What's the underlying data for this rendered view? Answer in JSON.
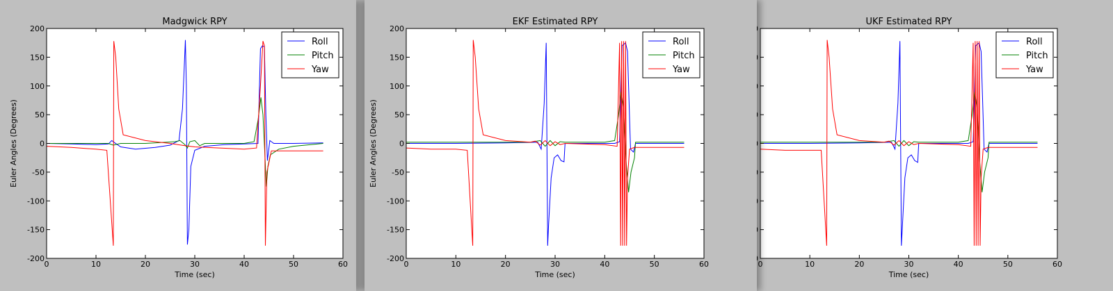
{
  "chart_data": [
    {
      "type": "line",
      "title": "Madgwick RPY",
      "xlabel": "Time (sec)",
      "ylabel": "Euler Angles (Degrees)",
      "xlim": [
        0,
        60
      ],
      "ylim": [
        -200,
        200
      ],
      "xticks": [
        0,
        10,
        20,
        30,
        40,
        50,
        60
      ],
      "yticks": [
        -200,
        -150,
        -100,
        -50,
        0,
        50,
        100,
        150,
        200
      ],
      "grid": false,
      "legend_position": "top-right",
      "series": [
        {
          "name": "Roll",
          "color": "#0000ff",
          "x": [
            0,
            5,
            10,
            12.5,
            13.2,
            13.8,
            15,
            18,
            22,
            25,
            26.8,
            27.5,
            28.1,
            28.3,
            28.5,
            28.8,
            29.2,
            30,
            32,
            36,
            40,
            42.8,
            43.3,
            43.7,
            44.1,
            44.4,
            44.7,
            45.2,
            46,
            50,
            56
          ],
          "y": [
            0,
            -1,
            -2,
            -1,
            5,
            1,
            -6,
            -10,
            -7,
            -3,
            5,
            60,
            180,
            100,
            -176,
            -150,
            -40,
            -12,
            -5,
            -2,
            -1,
            0,
            165,
            170,
            168,
            50,
            -30,
            5,
            0,
            0,
            1
          ]
        },
        {
          "name": "Pitch",
          "color": "#008000",
          "x": [
            0,
            10,
            12.5,
            13.5,
            15,
            20,
            26,
            27,
            28,
            28.5,
            29,
            30,
            31,
            32,
            40,
            42,
            42.8,
            43.4,
            43.8,
            44.2,
            44.5,
            44.8,
            45.3,
            47,
            50,
            56
          ],
          "y": [
            0,
            0,
            0,
            -3,
            0,
            0,
            3,
            5,
            -2,
            -8,
            3,
            5,
            -4,
            0,
            0,
            3,
            40,
            80,
            50,
            -20,
            -75,
            -40,
            -20,
            -10,
            -5,
            0
          ]
        },
        {
          "name": "Yaw",
          "color": "#ff0000",
          "x": [
            0,
            5,
            10,
            12.2,
            13.5,
            13.6,
            14,
            14.6,
            15.5,
            20,
            25,
            28,
            30,
            35,
            40,
            42.5,
            43.3,
            43.8,
            44.1,
            44.3,
            44.6,
            45.5,
            50,
            56
          ],
          "y": [
            -5,
            -7,
            -10,
            -12,
            -178,
            178,
            150,
            60,
            15,
            5,
            0,
            -4,
            -6,
            -8,
            -10,
            -8,
            100,
            178,
            170,
            -178,
            -50,
            -13,
            -13,
            -13
          ]
        }
      ]
    },
    {
      "type": "line",
      "title": "EKF Estimated RPY",
      "xlabel": "Time (sec)",
      "ylabel": "Euler Angles (Degrees)",
      "xlim": [
        0,
        60
      ],
      "ylim": [
        -200,
        200
      ],
      "xticks": [
        0,
        10,
        20,
        30,
        40,
        50,
        60
      ],
      "yticks": [
        -200,
        -150,
        -100,
        -50,
        0,
        50,
        100,
        150,
        200
      ],
      "grid": false,
      "legend_position": "top-right",
      "series": [
        {
          "name": "Roll",
          "color": "#0000ff",
          "x": [
            0,
            10,
            20,
            26.5,
            27.2,
            27.8,
            28.2,
            28.5,
            28.7,
            29.2,
            29.8,
            30.5,
            31.2,
            31.8,
            32,
            42,
            43,
            43.5,
            44.2,
            44.6,
            45.2,
            45.8,
            46.2,
            50,
            56
          ],
          "y": [
            0,
            0,
            1,
            2,
            -10,
            70,
            175,
            -178,
            -140,
            -60,
            -25,
            -20,
            -30,
            -32,
            0,
            0,
            3,
            170,
            175,
            160,
            -10,
            -15,
            0,
            0,
            0
          ]
        },
        {
          "name": "Pitch",
          "color": "#008000",
          "x": [
            0,
            10,
            20,
            25,
            27,
            28,
            29,
            30,
            31,
            32,
            40,
            42,
            42.8,
            43.3,
            43.8,
            44.3,
            44.8,
            45.3,
            46,
            46.2,
            50,
            56
          ],
          "y": [
            2,
            2,
            2,
            2,
            5,
            -5,
            5,
            -4,
            3,
            2,
            2,
            5,
            50,
            90,
            60,
            -30,
            -85,
            -50,
            -25,
            2,
            2,
            2
          ]
        },
        {
          "name": "Yaw",
          "color": "#ff0000",
          "x": [
            0,
            5,
            10,
            12.3,
            13.4,
            13.5,
            13.9,
            14.6,
            15.5,
            20,
            25,
            26,
            27,
            28,
            29,
            30,
            31,
            32,
            40,
            42.5,
            43,
            43.2,
            43.4,
            43.6,
            43.8,
            44.0,
            44.2,
            44.4,
            44.6,
            45,
            46,
            50,
            56
          ],
          "y": [
            -8,
            -10,
            -10,
            -12,
            -178,
            180,
            150,
            60,
            15,
            5,
            2,
            4,
            -3,
            5,
            -4,
            3,
            -2,
            0,
            -2,
            -5,
            175,
            -178,
            178,
            -178,
            178,
            -178,
            178,
            -178,
            -60,
            -10,
            -7,
            -7,
            -7
          ]
        }
      ]
    },
    {
      "type": "line",
      "title": "UKF Estimated RPY",
      "xlabel": "Time (sec)",
      "ylabel": "Euler Angles (Degrees)",
      "xlim": [
        0,
        60
      ],
      "ylim": [
        -200,
        200
      ],
      "xticks": [
        0,
        10,
        20,
        30,
        40,
        50,
        60
      ],
      "yticks": [
        -200,
        -150,
        -100,
        -50,
        0,
        50,
        100,
        150,
        200
      ],
      "grid": false,
      "legend_position": "top-right",
      "series": [
        {
          "name": "Roll",
          "color": "#0000ff",
          "x": [
            0,
            10,
            20,
            26.5,
            27.2,
            27.8,
            28.2,
            28.5,
            28.7,
            29.2,
            29.8,
            30.5,
            31.2,
            31.8,
            32,
            42,
            43,
            43.5,
            44.2,
            44.6,
            45.2,
            45.8,
            46.2,
            50,
            56
          ],
          "y": [
            0,
            0,
            1,
            2,
            -10,
            70,
            178,
            -178,
            -145,
            -60,
            -25,
            -20,
            -30,
            -33,
            0,
            0,
            3,
            170,
            175,
            160,
            -10,
            -15,
            0,
            0,
            0
          ]
        },
        {
          "name": "Pitch",
          "color": "#008000",
          "x": [
            0,
            10,
            20,
            25,
            27,
            28,
            29,
            30,
            31,
            32,
            40,
            42,
            42.8,
            43.3,
            43.8,
            44.3,
            44.8,
            45.3,
            46,
            46.2,
            50,
            56
          ],
          "y": [
            2,
            2,
            2,
            2,
            5,
            -5,
            5,
            -4,
            3,
            2,
            2,
            5,
            50,
            90,
            60,
            -30,
            -85,
            -50,
            -25,
            2,
            2,
            2
          ]
        },
        {
          "name": "Yaw",
          "color": "#ff0000",
          "x": [
            0,
            5,
            10,
            12.3,
            13.4,
            13.5,
            13.9,
            14.6,
            15.5,
            20,
            25,
            26,
            27,
            28,
            29,
            30,
            31,
            32,
            40,
            42.5,
            43,
            43.2,
            43.4,
            43.6,
            43.8,
            44.0,
            44.2,
            44.4,
            44.6,
            45,
            46,
            50,
            56
          ],
          "y": [
            -10,
            -12,
            -12,
            -12,
            -178,
            180,
            150,
            60,
            15,
            5,
            2,
            4,
            -3,
            5,
            -4,
            3,
            -2,
            0,
            -2,
            -5,
            175,
            -178,
            178,
            -178,
            178,
            -178,
            178,
            -178,
            -60,
            -10,
            -7,
            -7,
            -7
          ]
        }
      ]
    }
  ]
}
